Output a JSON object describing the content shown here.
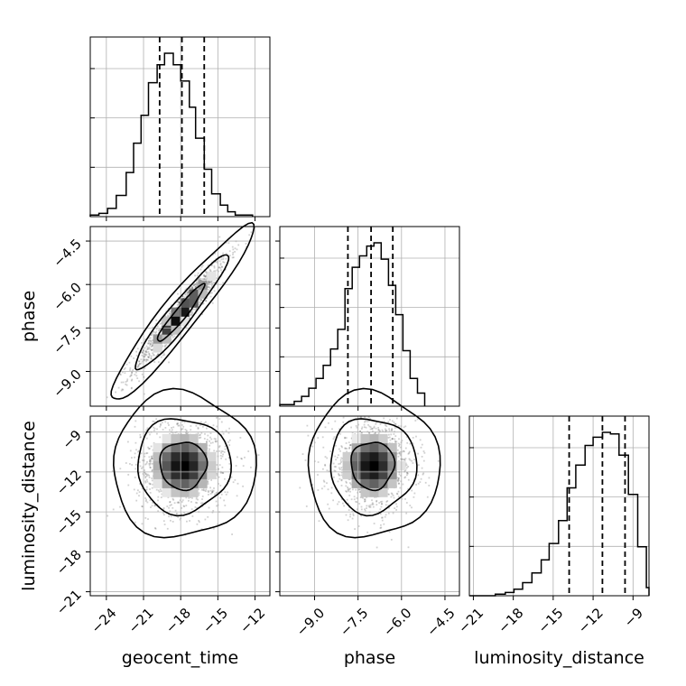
{
  "chart_data": {
    "type": "corner",
    "parameters": [
      "geocent_time",
      "phase",
      "luminosity_distance"
    ],
    "grid": true,
    "axes": {
      "geocent_time": {
        "ticks": [
          -24,
          -21,
          -18,
          -15,
          -12
        ],
        "tick_labels": [
          "−24",
          "−21",
          "−18",
          "−15",
          "−12"
        ],
        "lim": [
          -25.3,
          -10.8
        ]
      },
      "phase": {
        "ticks": [
          -9.0,
          -7.5,
          -6.0,
          -4.5
        ],
        "tick_labels": [
          "−9.0",
          "−7.5",
          "−6.0",
          "−4.5"
        ],
        "lim": [
          -10.2,
          -4.0
        ]
      },
      "luminosity_distance": {
        "ticks": [
          -21,
          -18,
          -15,
          -12,
          -9
        ],
        "tick_labels": [
          "−21",
          "−18",
          "−15",
          "−12",
          "−9"
        ],
        "lim": [
          -21.3,
          -7.8
        ]
      }
    },
    "histograms": [
      {
        "param": "geocent_time",
        "quantiles": [
          -19.7,
          -17.9,
          -16.1
        ],
        "bin_edges": [
          -25.3,
          -24.6,
          -23.9,
          -23.2,
          -22.4,
          -21.8,
          -21.2,
          -20.6,
          -19.9,
          -19.3,
          -18.6,
          -18.0,
          -17.3,
          -16.8,
          -16.1,
          -15.5,
          -14.8,
          -14.2,
          -13.6,
          -12.9,
          -12.2
        ],
        "counts": [
          0.01,
          0.02,
          0.05,
          0.13,
          0.27,
          0.45,
          0.62,
          0.82,
          0.93,
          1.0,
          0.93,
          0.83,
          0.67,
          0.48,
          0.29,
          0.14,
          0.07,
          0.03,
          0.01,
          0.01
        ]
      },
      {
        "param": "phase",
        "quantiles": [
          -7.85,
          -7.05,
          -6.3
        ],
        "bin_edges": [
          -10.2,
          -9.95,
          -9.7,
          -9.45,
          -9.2,
          -8.95,
          -8.7,
          -8.45,
          -8.2,
          -7.95,
          -7.7,
          -7.45,
          -7.2,
          -6.95,
          -6.7,
          -6.45,
          -6.2,
          -5.95,
          -5.7,
          -5.45,
          -5.2
        ],
        "counts": [
          0.01,
          0.01,
          0.03,
          0.06,
          0.11,
          0.17,
          0.25,
          0.35,
          0.47,
          0.72,
          0.85,
          0.92,
          0.98,
          1.0,
          0.9,
          0.74,
          0.56,
          0.34,
          0.17,
          0.08
        ]
      },
      {
        "param": "luminosity_distance",
        "quantiles": [
          -13.8,
          -11.3,
          -9.6
        ],
        "bin_edges": [
          -21.3,
          -20.65,
          -20.0,
          -19.35,
          -18.6,
          -17.95,
          -17.3,
          -16.6,
          -15.9,
          -15.3,
          -14.6,
          -13.95,
          -13.3,
          -12.6,
          -12.0,
          -11.3,
          -10.7,
          -10.05,
          -9.35,
          -8.65,
          -8.0,
          -7.8
        ],
        "counts": [
          0.0,
          0.0,
          0.0,
          0.01,
          0.02,
          0.04,
          0.08,
          0.14,
          0.22,
          0.32,
          0.46,
          0.66,
          0.8,
          0.92,
          0.97,
          1.0,
          0.99,
          0.86,
          0.62,
          0.3,
          0.05
        ]
      }
    ],
    "pairs": [
      {
        "x": "geocent_time",
        "y": "phase",
        "correlation": 0.95,
        "mean": [
          -18.0,
          -7.0
        ],
        "std": [
          1.9,
          1.0
        ]
      },
      {
        "x": "geocent_time",
        "y": "luminosity_distance",
        "correlation": 0.0,
        "mean": [
          -17.8,
          -11.5
        ],
        "std": [
          1.9,
          1.8
        ]
      },
      {
        "x": "phase",
        "y": "luminosity_distance",
        "correlation": 0.0,
        "mean": [
          -7.0,
          -11.5
        ],
        "std": [
          0.75,
          1.8
        ]
      }
    ],
    "contour_levels": [
      0.39,
      0.86,
      0.99
    ]
  }
}
